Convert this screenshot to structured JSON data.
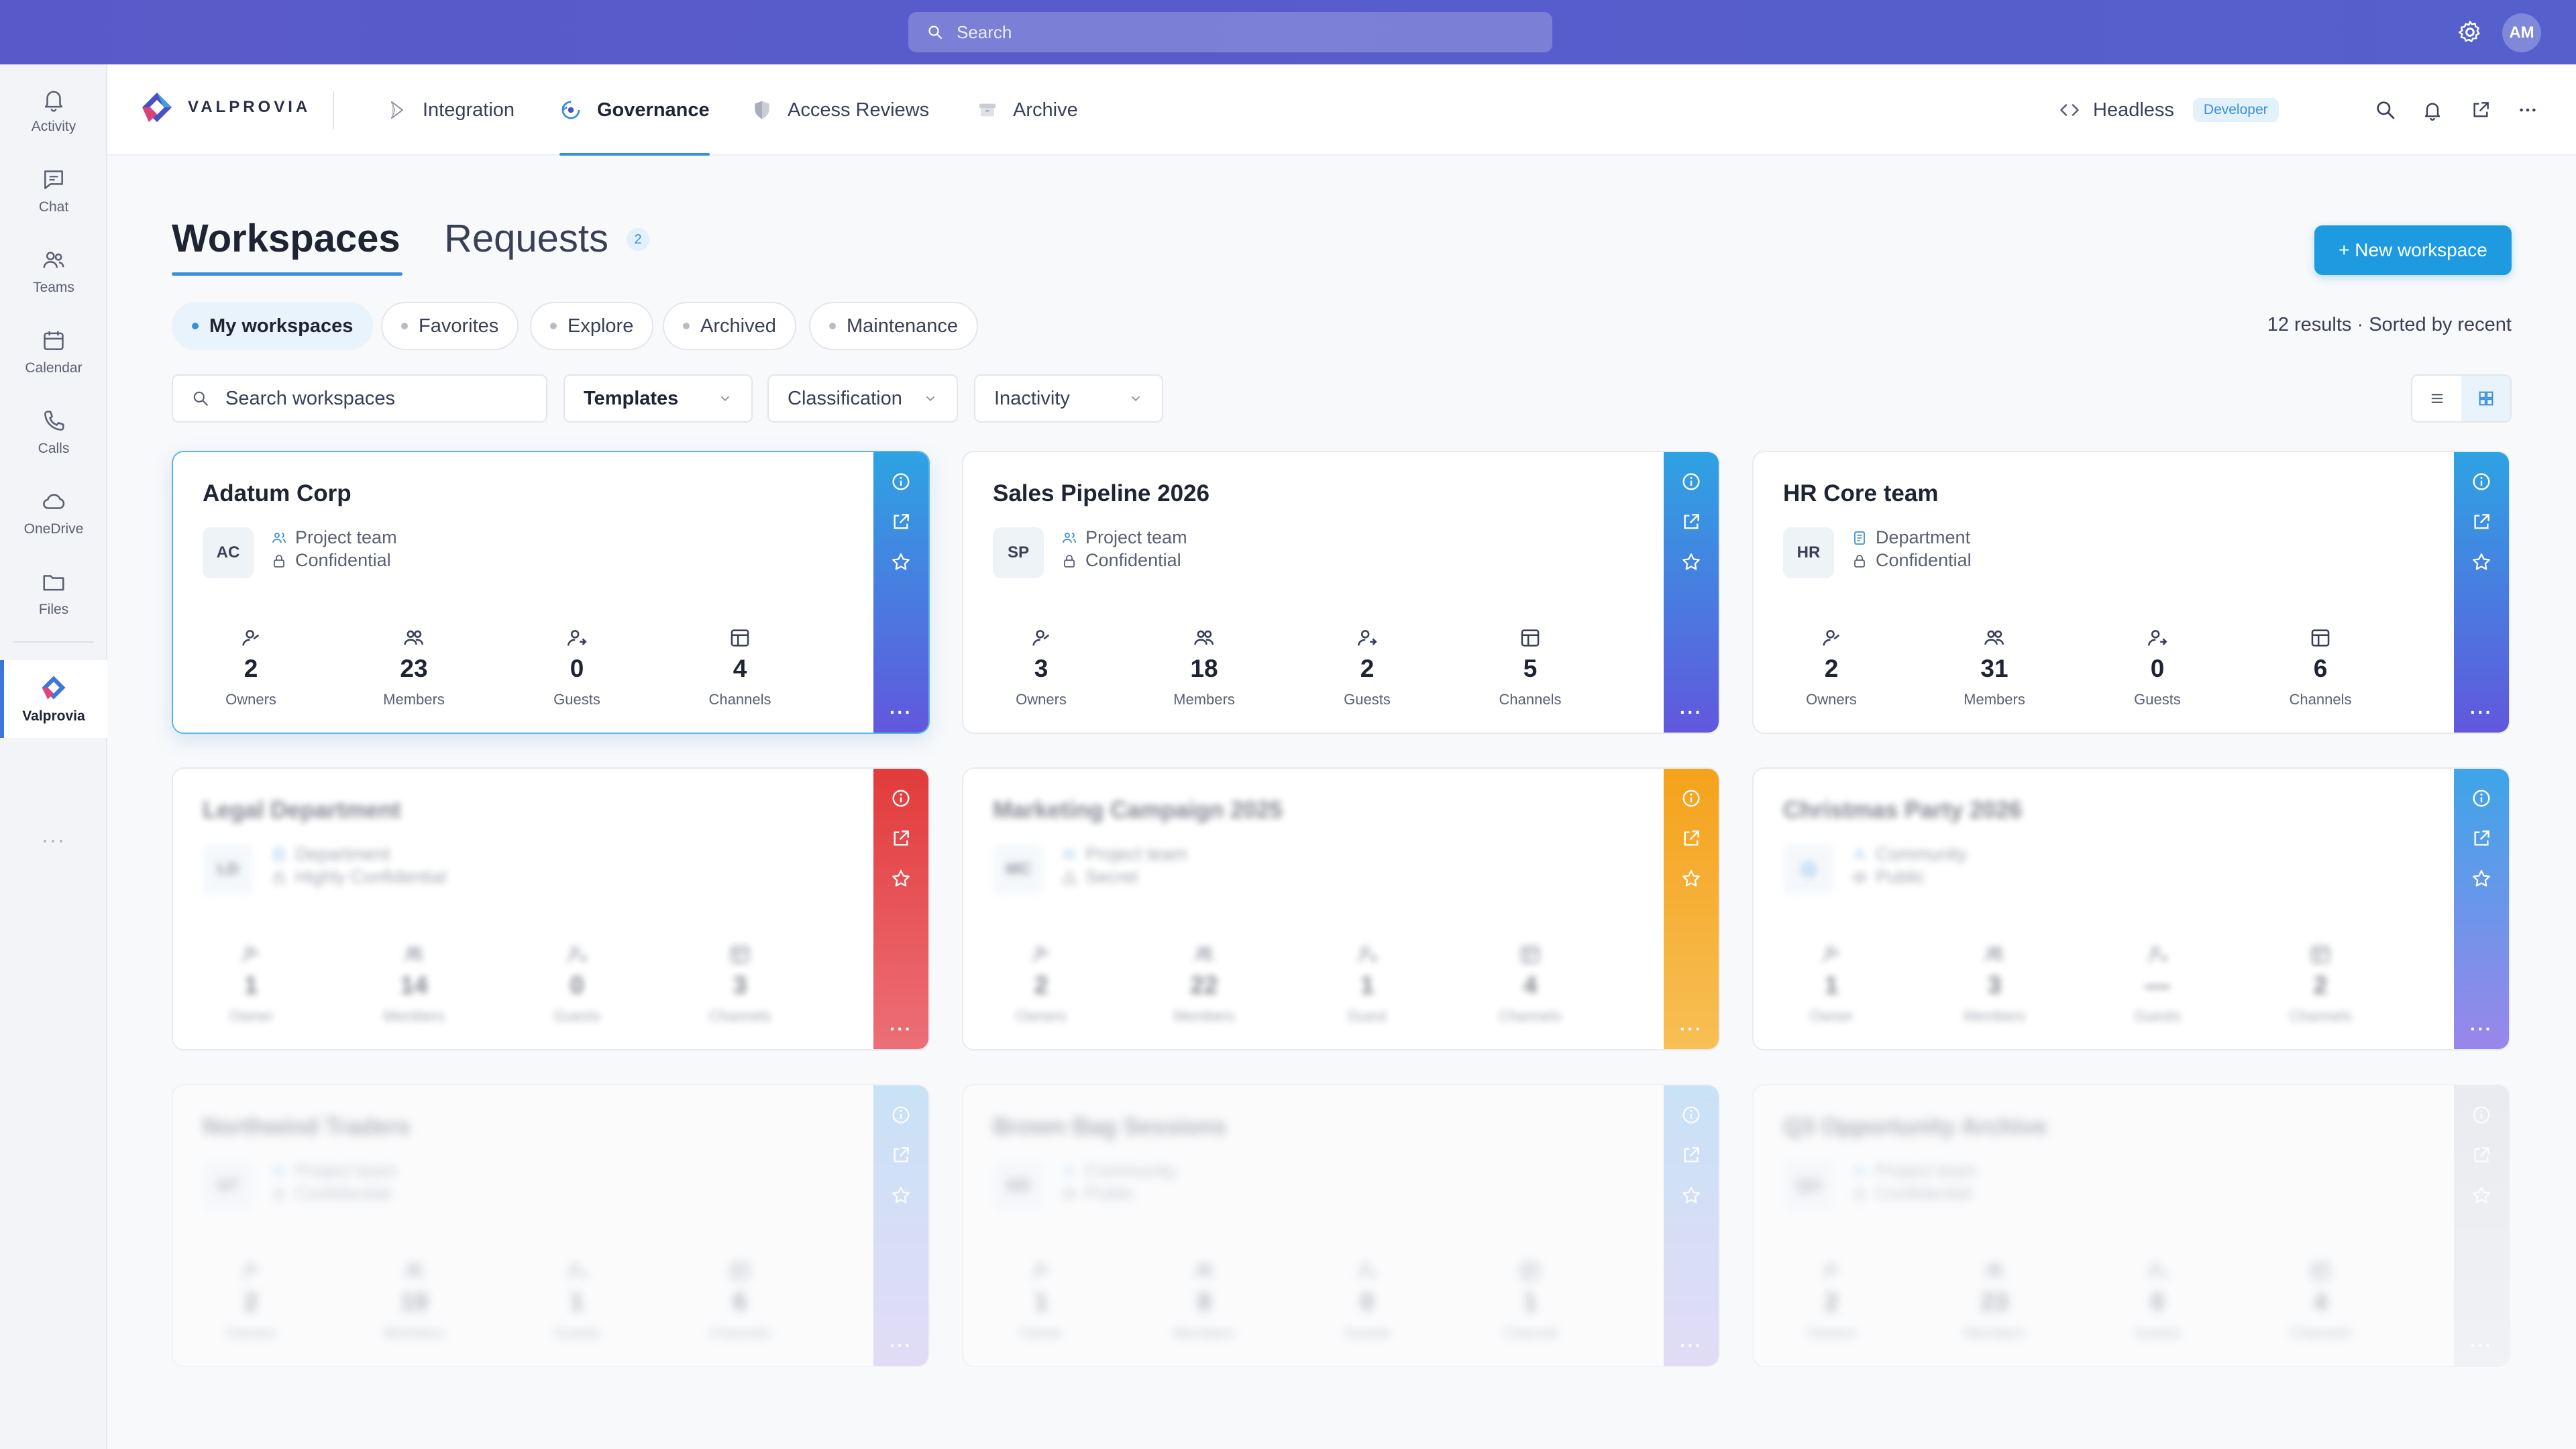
{
  "topbar": {
    "search_placeholder": "Search",
    "avatar": "AM"
  },
  "rail": [
    {
      "label": "Activity",
      "icon": "bell-icon"
    },
    {
      "label": "Chat",
      "icon": "chat-icon"
    },
    {
      "label": "Teams",
      "icon": "teams-icon"
    },
    {
      "label": "Calendar",
      "icon": "calendar-icon"
    },
    {
      "label": "Calls",
      "icon": "phone-icon"
    },
    {
      "label": "OneDrive",
      "icon": "cloud-icon"
    },
    {
      "label": "Files",
      "icon": "folder-icon"
    },
    {
      "label": "Valprovia",
      "icon": "valprovia-logo-icon",
      "active": true
    }
  ],
  "rail_more": "···",
  "appbar": {
    "brand": "VALPROVIA",
    "tabs": [
      {
        "label": "Integration",
        "icon": "integration-icon"
      },
      {
        "label": "Governance",
        "icon": "governance-icon",
        "active": true
      },
      {
        "label": "Access Reviews",
        "icon": "shield-icon"
      },
      {
        "label": "Archive",
        "icon": "archive-icon"
      }
    ],
    "headless": "Headless",
    "badge": "Developer"
  },
  "page": {
    "title": "Workspaces",
    "requests": "Requests",
    "requests_count": "2",
    "new_button": "+ New workspace",
    "filters": [
      "My workspaces",
      "Favorites",
      "Explore",
      "Archived",
      "Maintenance"
    ],
    "results": "12 results · Sorted by recent",
    "search_placeholder": "Search workspaces",
    "dropdowns": [
      "Templates",
      "Classification",
      "Inactivity"
    ]
  },
  "stat_labels_default": [
    "Owners",
    "Members",
    "Guests",
    "Channels"
  ],
  "cards": [
    {
      "title": "Adatum Corp",
      "abbr": "AC",
      "type": "Project team",
      "type_icon": "people-icon",
      "class": "Confidential",
      "class_icon": "lock-icon",
      "stats": [
        "2",
        "23",
        "0",
        "4"
      ],
      "labels": [
        "Owners",
        "Members",
        "Guests",
        "Channels"
      ],
      "colors": [
        "#2ea3e3",
        "#6257dd"
      ],
      "state": "selected"
    },
    {
      "title": "Sales Pipeline 2026",
      "abbr": "SP",
      "type": "Project team",
      "type_icon": "people-icon",
      "class": "Confidential",
      "class_icon": "lock-icon",
      "stats": [
        "3",
        "18",
        "2",
        "5"
      ],
      "labels": [
        "Owners",
        "Members",
        "Guests",
        "Channels"
      ],
      "colors": [
        "#2ea3e3",
        "#6257dd"
      ],
      "state": "normal"
    },
    {
      "title": "HR Core team",
      "abbr": "HR",
      "type": "Department",
      "type_icon": "document-icon",
      "class": "Confidential",
      "class_icon": "lock-icon",
      "stats": [
        "2",
        "31",
        "0",
        "6"
      ],
      "labels": [
        "Owners",
        "Members",
        "Guests",
        "Channels"
      ],
      "colors": [
        "#2ea3e3",
        "#6257dd"
      ],
      "state": "normal"
    },
    {
      "title": "Legal Department",
      "abbr": "LD",
      "type": "Department",
      "type_icon": "document-icon",
      "class": "Highly Confidential",
      "class_icon": "lock-icon",
      "stats": [
        "1",
        "14",
        "0",
        "3"
      ],
      "labels": [
        "Owner",
        "Members",
        "Guests",
        "Channels"
      ],
      "colors": [
        "#e23b3b",
        "#ec6f77"
      ],
      "state": "blur1"
    },
    {
      "title": "Marketing Campaign 2025",
      "abbr": "MC",
      "type": "Project team",
      "type_icon": "people-icon",
      "class": "Secret",
      "class_icon": "warning-icon",
      "stats": [
        "2",
        "22",
        "1",
        "4"
      ],
      "labels": [
        "Owners",
        "Members",
        "Guest",
        "Channels"
      ],
      "colors": [
        "#f5a21b",
        "#f7bf55"
      ],
      "state": "blur1"
    },
    {
      "title": "Christmas Party 2026",
      "abbr": "",
      "type": "Community",
      "type_icon": "person-icon",
      "class": "Public",
      "class_icon": "eye-icon",
      "stats": [
        "1",
        "3",
        "—",
        "2"
      ],
      "labels": [
        "Owner",
        "Members",
        "Guests",
        "Channels"
      ],
      "colors": [
        "#3ea5e8",
        "#9a86ea"
      ],
      "state": "blur1"
    },
    {
      "title": "Northwind Traders",
      "abbr": "NT",
      "type": "Project team",
      "type_icon": "people-icon",
      "class": "Confidential",
      "class_icon": "lock-icon",
      "stats": [
        "2",
        "19",
        "1",
        "6"
      ],
      "labels": [
        "Owners",
        "Members",
        "Guests",
        "Channels"
      ],
      "colors": [
        "#8fc7f0",
        "#c9b8f2"
      ],
      "state": "blur2"
    },
    {
      "title": "Brown Bag Sessions",
      "abbr": "BB",
      "type": "Community",
      "type_icon": "person-icon",
      "class": "Public",
      "class_icon": "eye-icon",
      "stats": [
        "1",
        "8",
        "0",
        "1"
      ],
      "labels": [
        "Owner",
        "Members",
        "Guests",
        "Channel"
      ],
      "colors": [
        "#8fc7f0",
        "#c9b8f2"
      ],
      "state": "blur2"
    },
    {
      "title": "Q3 Opportunity Archive",
      "abbr": "QO",
      "type": "Project team",
      "type_icon": "people-icon",
      "class": "Confidential",
      "class_icon": "lock-icon",
      "stats": [
        "2",
        "23",
        "0",
        "4"
      ],
      "labels": [
        "Owners",
        "Members",
        "Guests",
        "Channels"
      ],
      "colors": [
        "#d8dbe2",
        "#e8eaee"
      ],
      "state": "blur2"
    }
  ]
}
